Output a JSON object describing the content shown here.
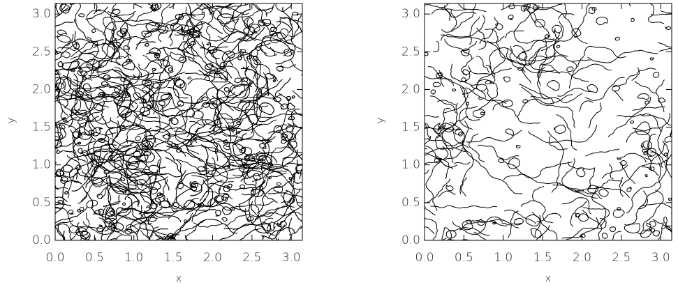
{
  "chart_data": [
    {
      "type": "contour",
      "xlabel": "x",
      "ylabel": "y",
      "xlim": [
        0,
        3.14
      ],
      "ylim": [
        0,
        3.14
      ],
      "xticks": [
        {
          "value": 0,
          "label": "0.0"
        },
        0.5,
        {
          "value": 1,
          "label": "1.0"
        },
        1.5,
        {
          "value": 2,
          "label": "2.0"
        },
        2.5,
        {
          "value": 3,
          "label": "3.0"
        }
      ],
      "yticks": [
        {
          "value": 0,
          "label": "0.0"
        },
        0.5,
        {
          "value": 1,
          "label": "1.0"
        },
        1.5,
        {
          "value": 2,
          "label": "2.0"
        },
        2.5,
        {
          "value": 3,
          "label": "3.0"
        }
      ]
    },
    {
      "type": "contour",
      "xlabel": "x",
      "ylabel": "y",
      "xlim": [
        0,
        3.14
      ],
      "ylim": [
        0,
        3.14
      ],
      "xticks": [
        {
          "value": 0,
          "label": "0.0"
        },
        0.5,
        {
          "value": 1,
          "label": "1.0"
        },
        1.5,
        {
          "value": 2,
          "label": "2.0"
        },
        2.5,
        {
          "value": 3,
          "label": "3.0"
        }
      ],
      "yticks": [
        {
          "value": 0,
          "label": "0.0"
        },
        0.5,
        {
          "value": 1,
          "label": "1.0"
        },
        1.5,
        {
          "value": 2,
          "label": "2.0"
        },
        2.5,
        {
          "value": 3,
          "label": "3.0"
        }
      ]
    }
  ]
}
